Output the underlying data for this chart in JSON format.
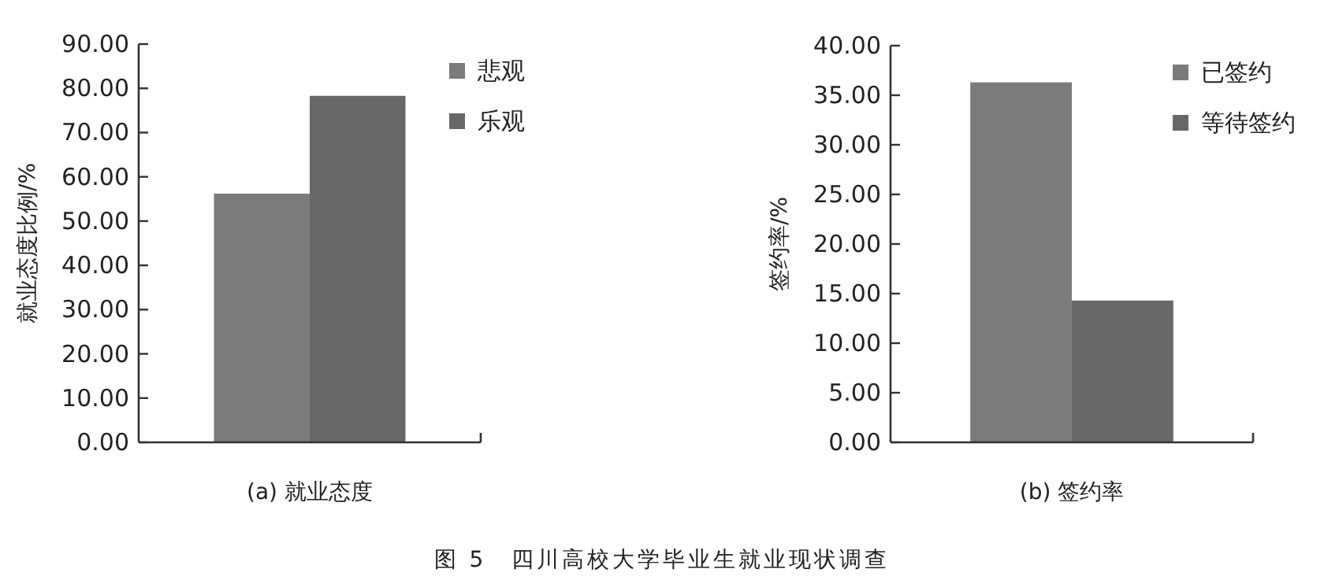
{
  "chart_data": [
    {
      "type": "bar",
      "xlabel": "(a) 就业态度",
      "ylabel": "就业态度比例/%",
      "categories": [
        null
      ],
      "series": [
        {
          "name": "悲观",
          "color": "#7b7b7b",
          "values": [
            56.2
          ]
        },
        {
          "name": "乐观",
          "color": "#686868",
          "values": [
            78.3
          ]
        }
      ],
      "ylim": [
        0,
        90
      ],
      "yticks": [
        {
          "value": 0,
          "label": "0.00"
        },
        {
          "value": 10,
          "label": "10.00"
        },
        {
          "value": 20,
          "label": "20.00"
        },
        {
          "value": 30,
          "label": "30.00"
        },
        {
          "value": 40,
          "label": "40.00"
        },
        {
          "value": 50,
          "label": "50.00"
        },
        {
          "value": 60,
          "label": "60.00"
        },
        {
          "value": 70,
          "label": "70.00"
        },
        {
          "value": 80,
          "label": "80.00"
        },
        {
          "value": 90,
          "label": "90.00"
        }
      ],
      "legend": "top right",
      "grid": false,
      "annotations": [
        "图 5　四川高校大学毕业生就业现状调查"
      ]
    },
    {
      "type": "bar",
      "xlabel": "(b) 签约率",
      "ylabel": "签约率/%",
      "categories": [
        null
      ],
      "series": [
        {
          "name": "已签约",
          "color": "#7b7b7b",
          "values": [
            36.3
          ]
        },
        {
          "name": "等待签约",
          "color": "#686868",
          "values": [
            14.3
          ]
        }
      ],
      "ylim": [
        0,
        40
      ],
      "yticks": [
        {
          "value": 0,
          "label": "0.00"
        },
        {
          "value": 5,
          "label": "5.00"
        },
        {
          "value": 10,
          "label": "10.00"
        },
        {
          "value": 15,
          "label": "15.00"
        },
        {
          "value": 20,
          "label": "20.00"
        },
        {
          "value": 25,
          "label": "25.00"
        },
        {
          "value": 30,
          "label": "30.00"
        },
        {
          "value": 35,
          "label": "35.00"
        },
        {
          "value": 40,
          "label": "40.00"
        }
      ],
      "legend": "top right",
      "grid": false
    }
  ]
}
